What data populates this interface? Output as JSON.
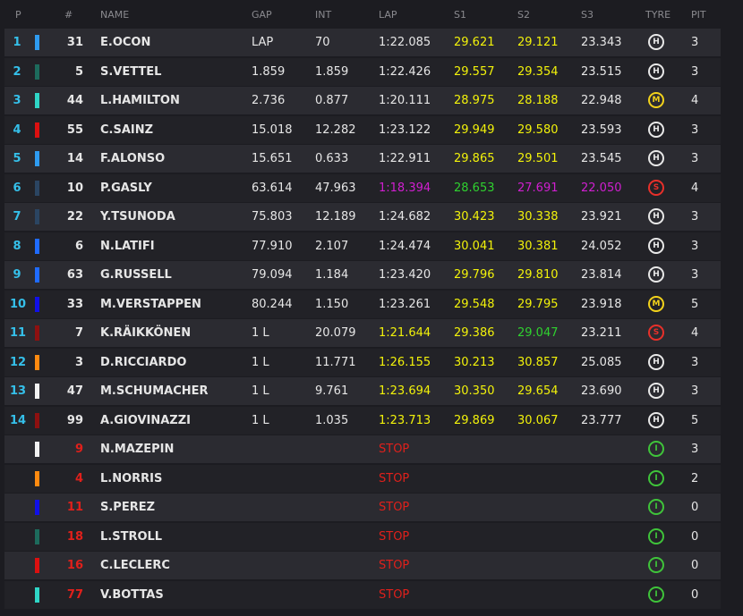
{
  "table": {
    "columns": [
      "P",
      "#",
      "NAME",
      "GAP",
      "INT",
      "LAP",
      "S1",
      "S2",
      "S3",
      "TYRE",
      "PIT"
    ],
    "tyre_colors": {
      "H": "#e8e8e8",
      "M": "#f2d21b",
      "S": "#e8302a",
      "I": "#3fc43a"
    },
    "stop_color": "#e0201b",
    "rows": [
      {
        "pos": 1,
        "team_color": "#2e9bf0",
        "number": "31",
        "name": "E.OCON",
        "gap": "LAP",
        "int": "70",
        "lap": "1:22.085",
        "s1": "29.621",
        "s2": "29.121",
        "s3": "23.343",
        "colors": [
          "#e6e6e6",
          "#f2f20a",
          "#f2f20a",
          "#e6e6e6"
        ],
        "tyre": "H",
        "pit": "3"
      },
      {
        "pos": 2,
        "team_color": "#1d6b5c",
        "number": "5",
        "name": "S.VETTEL",
        "gap": "1.859",
        "int": "1.859",
        "lap": "1:22.426",
        "s1": "29.557",
        "s2": "29.354",
        "s3": "23.515",
        "colors": [
          "#e6e6e6",
          "#f2f20a",
          "#f2f20a",
          "#e6e6e6"
        ],
        "tyre": "H",
        "pit": "3"
      },
      {
        "pos": 3,
        "team_color": "#2fd6c6",
        "number": "44",
        "name": "L.HAMILTON",
        "gap": "2.736",
        "int": "0.877",
        "lap": "1:20.111",
        "s1": "28.975",
        "s2": "28.188",
        "s3": "22.948",
        "colors": [
          "#e6e6e6",
          "#f2f20a",
          "#f2f20a",
          "#e6e6e6"
        ],
        "tyre": "M",
        "pit": "4"
      },
      {
        "pos": 4,
        "team_color": "#dc1010",
        "number": "55",
        "name": "C.SAINZ",
        "gap": "15.018",
        "int": "12.282",
        "lap": "1:23.122",
        "s1": "29.949",
        "s2": "29.580",
        "s3": "23.593",
        "colors": [
          "#e6e6e6",
          "#f2f20a",
          "#f2f20a",
          "#e6e6e6"
        ],
        "tyre": "H",
        "pit": "3"
      },
      {
        "pos": 5,
        "team_color": "#2e9bf0",
        "number": "14",
        "name": "F.ALONSO",
        "gap": "15.651",
        "int": "0.633",
        "lap": "1:22.911",
        "s1": "29.865",
        "s2": "29.501",
        "s3": "23.545",
        "colors": [
          "#e6e6e6",
          "#f2f20a",
          "#f2f20a",
          "#e6e6e6"
        ],
        "tyre": "H",
        "pit": "3"
      },
      {
        "pos": 6,
        "team_color": "#2b4562",
        "number": "10",
        "name": "P.GASLY",
        "gap": "63.614",
        "int": "47.963",
        "lap": "1:18.394",
        "s1": "28.653",
        "s2": "27.691",
        "s3": "22.050",
        "colors": [
          "#d01fd0",
          "#2fd12f",
          "#d01fd0",
          "#d01fd0"
        ],
        "tyre": "S",
        "pit": "4"
      },
      {
        "pos": 7,
        "team_color": "#2b4562",
        "number": "22",
        "name": "Y.TSUNODA",
        "gap": "75.803",
        "int": "12.189",
        "lap": "1:24.682",
        "s1": "30.423",
        "s2": "30.338",
        "s3": "23.921",
        "colors": [
          "#e6e6e6",
          "#f2f20a",
          "#f2f20a",
          "#e6e6e6"
        ],
        "tyre": "H",
        "pit": "3"
      },
      {
        "pos": 8,
        "team_color": "#1f6bff",
        "number": "6",
        "name": "N.LATIFI",
        "gap": "77.910",
        "int": "2.107",
        "lap": "1:24.474",
        "s1": "30.041",
        "s2": "30.381",
        "s3": "24.052",
        "colors": [
          "#e6e6e6",
          "#f2f20a",
          "#f2f20a",
          "#e6e6e6"
        ],
        "tyre": "H",
        "pit": "3"
      },
      {
        "pos": 9,
        "team_color": "#1f6bff",
        "number": "63",
        "name": "G.RUSSELL",
        "gap": "79.094",
        "int": "1.184",
        "lap": "1:23.420",
        "s1": "29.796",
        "s2": "29.810",
        "s3": "23.814",
        "colors": [
          "#e6e6e6",
          "#f2f20a",
          "#f2f20a",
          "#e6e6e6"
        ],
        "tyre": "H",
        "pit": "3"
      },
      {
        "pos": 10,
        "team_color": "#1010e8",
        "number": "33",
        "name": "M.VERSTAPPEN",
        "gap": "80.244",
        "int": "1.150",
        "lap": "1:23.261",
        "s1": "29.548",
        "s2": "29.795",
        "s3": "23.918",
        "colors": [
          "#e6e6e6",
          "#f2f20a",
          "#f2f20a",
          "#e6e6e6"
        ],
        "tyre": "M",
        "pit": "5"
      },
      {
        "pos": 11,
        "team_color": "#8e1010",
        "number": "7",
        "name": "K.RÄIKKÖNEN",
        "gap": "1 L",
        "int": "20.079",
        "lap": "1:21.644",
        "s1": "29.386",
        "s2": "29.047",
        "s3": "23.211",
        "colors": [
          "#f2f20a",
          "#f2f20a",
          "#2fd12f",
          "#e6e6e6"
        ],
        "tyre": "S",
        "pit": "4"
      },
      {
        "pos": 12,
        "team_color": "#ff8a10",
        "number": "3",
        "name": "D.RICCIARDO",
        "gap": "1 L",
        "int": "11.771",
        "lap": "1:26.155",
        "s1": "30.213",
        "s2": "30.857",
        "s3": "25.085",
        "colors": [
          "#f2f20a",
          "#f2f20a",
          "#f2f20a",
          "#e6e6e6"
        ],
        "tyre": "H",
        "pit": "3"
      },
      {
        "pos": 13,
        "team_color": "#f2f2f2",
        "number": "47",
        "name": "M.SCHUMACHER",
        "gap": "1 L",
        "int": "9.761",
        "lap": "1:23.694",
        "s1": "30.350",
        "s2": "29.654",
        "s3": "23.690",
        "colors": [
          "#f2f20a",
          "#f2f20a",
          "#f2f20a",
          "#e6e6e6"
        ],
        "tyre": "H",
        "pit": "3"
      },
      {
        "pos": 14,
        "team_color": "#8e1010",
        "number": "99",
        "name": "A.GIOVINAZZI",
        "gap": "1 L",
        "int": "1.035",
        "lap": "1:23.713",
        "s1": "29.869",
        "s2": "30.067",
        "s3": "23.777",
        "colors": [
          "#f2f20a",
          "#f2f20a",
          "#f2f20a",
          "#e6e6e6"
        ],
        "tyre": "H",
        "pit": "5"
      },
      {
        "team_color": "#f2f2f2",
        "number": "9",
        "name": "N.MAZEPIN",
        "status": "STOP",
        "tyre": "I",
        "pit": "3"
      },
      {
        "team_color": "#ff8a10",
        "number": "4",
        "name": "L.NORRIS",
        "status": "STOP",
        "tyre": "I",
        "pit": "2"
      },
      {
        "team_color": "#1010e8",
        "number": "11",
        "name": "S.PEREZ",
        "status": "STOP",
        "tyre": "I",
        "pit": "0"
      },
      {
        "team_color": "#1d6b5c",
        "number": "18",
        "name": "L.STROLL",
        "status": "STOP",
        "tyre": "I",
        "pit": "0"
      },
      {
        "team_color": "#dc1010",
        "number": "16",
        "name": "C.LECLERC",
        "status": "STOP",
        "tyre": "I",
        "pit": "0"
      },
      {
        "team_color": "#2fd6c6",
        "number": "77",
        "name": "V.BOTTAS",
        "status": "STOP",
        "tyre": "I",
        "pit": "0"
      }
    ]
  }
}
